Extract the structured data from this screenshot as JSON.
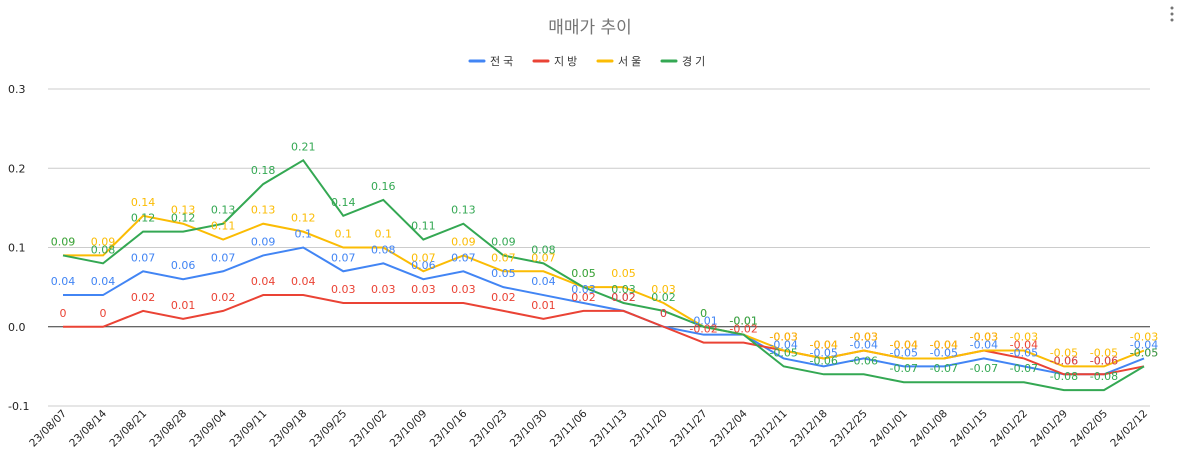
{
  "chart_data": {
    "type": "line",
    "title": "매매가 추이",
    "categories": [
      "23/08/07",
      "23/08/14",
      "23/08/21",
      "23/08/28",
      "23/09/04",
      "23/09/11",
      "23/09/18",
      "23/09/25",
      "23/10/02",
      "23/10/09",
      "23/10/16",
      "23/10/23",
      "23/10/30",
      "23/11/06",
      "23/11/13",
      "23/11/20",
      "23/11/27",
      "23/12/04",
      "23/12/11",
      "23/12/18",
      "23/12/25",
      "24/01/01",
      "24/01/08",
      "24/01/15",
      "24/01/22",
      "24/01/29",
      "24/02/05",
      "24/02/12"
    ],
    "series": [
      {
        "name": "전국",
        "color": "#4285f4",
        "values": [
          0.04,
          0.04,
          0.07,
          0.06,
          0.07,
          0.09,
          0.1,
          0.07,
          0.08,
          0.06,
          0.07,
          0.05,
          0.04,
          0.03,
          0.02,
          0,
          -0.01,
          -0.01,
          -0.04,
          -0.05,
          -0.04,
          -0.05,
          -0.05,
          -0.04,
          -0.05,
          -0.06,
          -0.06,
          -0.04
        ]
      },
      {
        "name": "지방",
        "color": "#ea4335",
        "values": [
          0,
          0,
          0.02,
          0.01,
          0.02,
          0.04,
          0.04,
          0.03,
          0.03,
          0.03,
          0.03,
          0.02,
          0.01,
          0.02,
          0.02,
          0,
          -0.02,
          -0.02,
          -0.03,
          -0.04,
          -0.03,
          -0.04,
          -0.04,
          -0.03,
          -0.04,
          -0.06,
          -0.06,
          -0.05
        ]
      },
      {
        "name": "서울",
        "color": "#fbbc04",
        "values": [
          0.09,
          0.09,
          0.14,
          0.13,
          0.11,
          0.13,
          0.12,
          0.1,
          0.1,
          0.07,
          0.09,
          0.07,
          0.07,
          0.05,
          0.05,
          0.03,
          0,
          -0.01,
          -0.03,
          -0.04,
          -0.03,
          -0.04,
          -0.04,
          -0.03,
          -0.03,
          -0.05,
          -0.05,
          -0.03
        ]
      },
      {
        "name": "경기",
        "color": "#34a853",
        "values": [
          0.09,
          0.08,
          0.12,
          0.12,
          0.13,
          0.18,
          0.21,
          0.14,
          0.16,
          0.11,
          0.13,
          0.09,
          0.08,
          0.05,
          0.03,
          0.02,
          0,
          -0.01,
          -0.05,
          -0.06,
          -0.06,
          -0.07,
          -0.07,
          -0.07,
          -0.07,
          -0.08,
          -0.08,
          -0.05
        ]
      }
    ],
    "ylim": [
      -0.1,
      0.3
    ],
    "yticks": [
      -0.1,
      {
        "value": 0,
        "label": "0.0"
      },
      0.1,
      0.2,
      0.3
    ],
    "grid": true,
    "legend": "top"
  }
}
